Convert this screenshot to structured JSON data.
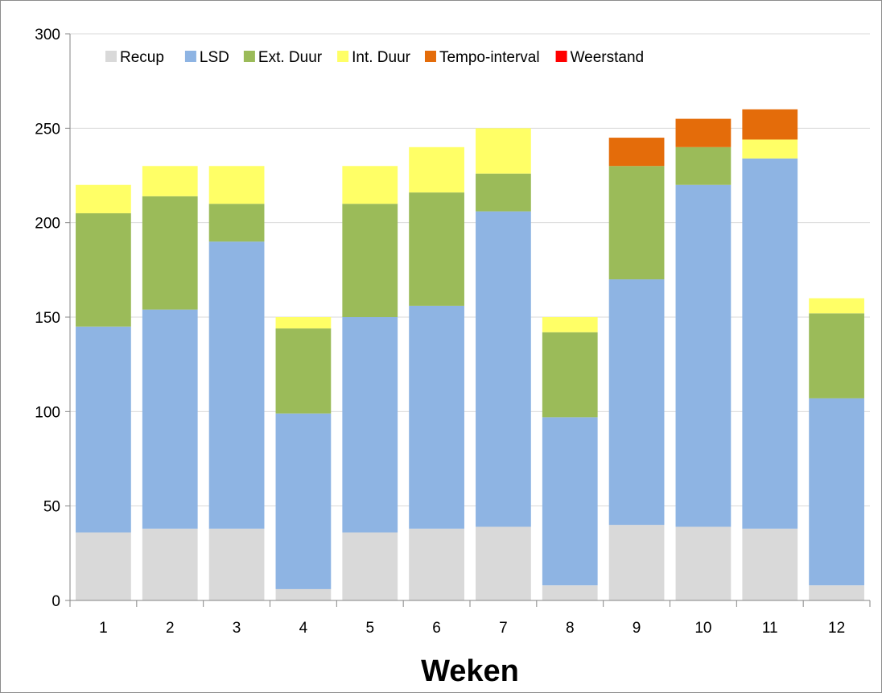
{
  "chart_data": {
    "type": "bar",
    "stacked": true,
    "title": "",
    "xlabel": "Weken",
    "ylabel": "",
    "ylim": [
      0,
      300
    ],
    "yticks": [
      0,
      50,
      100,
      150,
      200,
      250,
      300
    ],
    "grid": true,
    "legend_position": "top-left",
    "categories": [
      "1",
      "2",
      "3",
      "4",
      "5",
      "6",
      "7",
      "8",
      "9",
      "10",
      "11",
      "12"
    ],
    "series": [
      {
        "name": "Recup",
        "color": "#d9d9d9",
        "values": [
          36,
          38,
          38,
          6,
          36,
          38,
          39,
          8,
          40,
          39,
          38,
          8
        ]
      },
      {
        "name": "LSD",
        "color": "#8eb4e3",
        "values": [
          109,
          116,
          152,
          93,
          114,
          118,
          167,
          89,
          130,
          181,
          196,
          99
        ]
      },
      {
        "name": "Ext. Duur",
        "color": "#9bbb59",
        "values": [
          60,
          60,
          20,
          45,
          60,
          60,
          20,
          45,
          60,
          20,
          0,
          45
        ]
      },
      {
        "name": "Int. Duur",
        "color": "#ffff66",
        "values": [
          15,
          16,
          20,
          6,
          20,
          24,
          24,
          8,
          0,
          0,
          10,
          8
        ]
      },
      {
        "name": "Tempo-interval",
        "color": "#e46c0a",
        "values": [
          0,
          0,
          0,
          0,
          0,
          0,
          0,
          0,
          15,
          15,
          16,
          0
        ]
      },
      {
        "name": "Weerstand",
        "color": "#ff0000",
        "values": [
          0,
          0,
          0,
          0,
          0,
          0,
          0,
          0,
          0,
          0,
          0,
          0
        ]
      }
    ]
  }
}
